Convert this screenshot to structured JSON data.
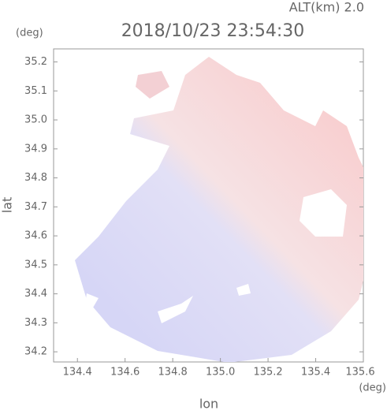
{
  "chart_data": {
    "type": "field",
    "title": "2018/10/23 23:54:30",
    "subtitle": "ALT(km) 2.0",
    "x_label": "lon",
    "y_label": "lat",
    "x_unit": "(deg)",
    "y_unit": "(deg)",
    "xlim": [
      134.3,
      135.6
    ],
    "ylim": [
      34.165,
      35.245
    ],
    "xticks": [
      134.4,
      134.6,
      134.8,
      {
        "value": 135.0,
        "label": "135.0"
      },
      135.2,
      135.4,
      135.6
    ],
    "yticks": [
      34.2,
      34.3,
      34.4,
      34.5,
      34.6,
      34.7,
      34.8,
      34.9,
      {
        "value": 35.0,
        "label": "35.0"
      },
      35.1,
      35.2
    ]
  }
}
